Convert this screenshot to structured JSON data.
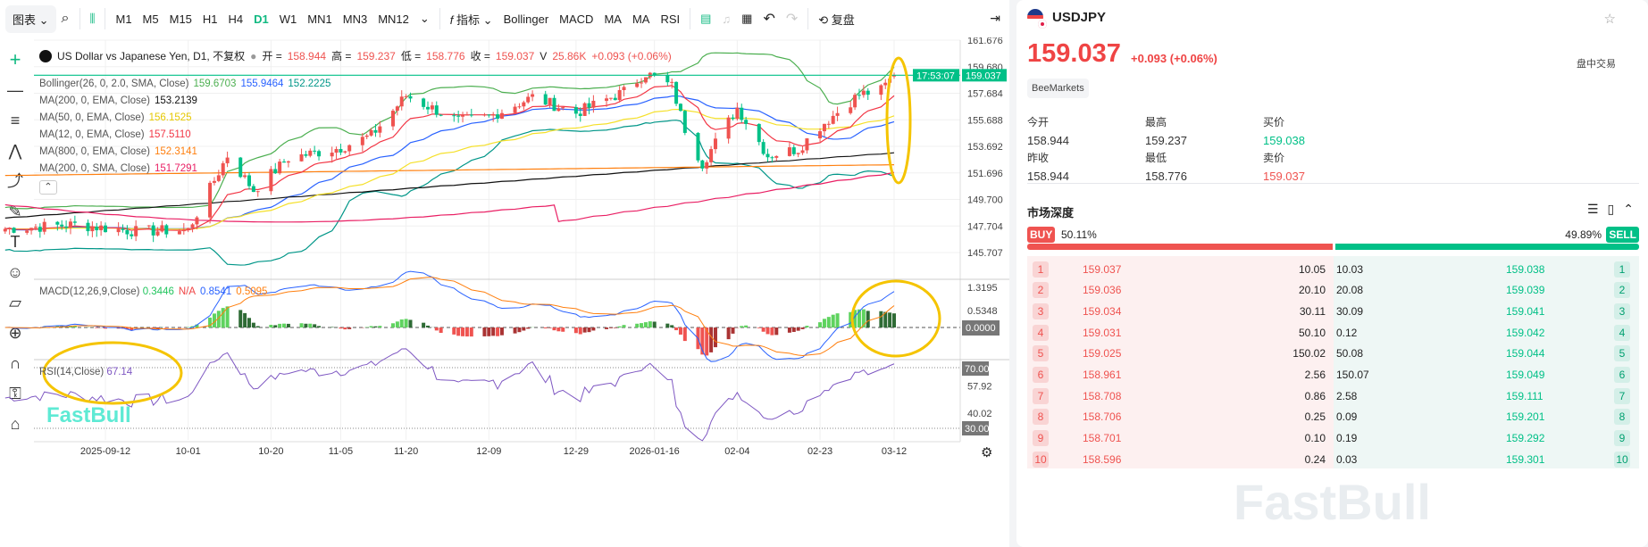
{
  "toolbar": {
    "chart_menu": "图表",
    "timeframes": [
      "M1",
      "M5",
      "M15",
      "H1",
      "H4",
      "D1",
      "W1",
      "MN1",
      "MN3",
      "MN12"
    ],
    "active_timeframe": "D1",
    "indicators_label": "指标",
    "indicators": [
      "Bollinger",
      "MACD",
      "MA",
      "MA",
      "RSI"
    ],
    "replay_label": "复盘"
  },
  "chart": {
    "title": "US Dollar vs Japanese Yen, D1, 不复权",
    "ohlc": {
      "open_label": "开 =",
      "open": "158.944",
      "high_label": "高 =",
      "high": "159.237",
      "low_label": "低 =",
      "low": "158.776",
      "close_label": "收 =",
      "close": "159.037",
      "volume_label": "V",
      "volume": "25.86K",
      "change": "+0.093 (+0.06%)"
    },
    "indicators": [
      {
        "label": "Bollinger(26, 0, 2.0, SMA, Close)",
        "values": [
          "159.6703",
          "155.9464",
          "152.2225"
        ],
        "colors": [
          "#4caf50",
          "#2962ff",
          "#009688"
        ]
      },
      {
        "label": "MA(200, 0, EMA, Close)",
        "values": [
          "153.2139"
        ],
        "colors": [
          "#111111"
        ]
      },
      {
        "label": "MA(50, 0, EMA, Close)",
        "values": [
          "156.1525"
        ],
        "colors": [
          "#f5e02a"
        ]
      },
      {
        "label": "MA(12, 0, EMA, Close)",
        "values": [
          "157.5110"
        ],
        "colors": [
          "#f23645"
        ]
      },
      {
        "label": "MA(800, 0, EMA, Close)",
        "values": [
          "152.3141"
        ],
        "colors": [
          "#ff7f0e"
        ]
      },
      {
        "label": "MA(200, 0, SMA, Close)",
        "values": [
          "151.7291"
        ],
        "colors": [
          "#e91e63"
        ]
      }
    ],
    "price_ticks": [
      "161.676",
      "159.680",
      "157.684",
      "155.688",
      "153.692",
      "151.696",
      "149.700",
      "147.704",
      "145.707"
    ],
    "last_price": "159.037",
    "countdown": "17:53:07",
    "macd": {
      "label": "MACD(12,26,9,Close)",
      "values": [
        "0.3446",
        "N/A",
        "0.8541",
        "0.5095"
      ],
      "colors": [
        "#22c55e",
        "#ef4444",
        "#2962ff",
        "#ff7f0e"
      ],
      "ticks": [
        "1.3195",
        "0.5348",
        "0.0000"
      ]
    },
    "rsi": {
      "label": "RSI(14,Close)",
      "value": "67.14",
      "ticks": [
        "70.00",
        "57.92",
        "40.02",
        "30.00"
      ]
    },
    "date_ticks": [
      "2025-09-12",
      "10-01",
      "10-20",
      "11-05",
      "11-20",
      "12-09",
      "12-29",
      "2026-01-16",
      "02-04",
      "02-23",
      "03-12"
    ],
    "watermark": "FastBull"
  },
  "chart_data": {
    "type": "candlestick",
    "x_unit": "date",
    "closes_keypoints": [
      [
        "2025-08-20",
        147.5
      ],
      [
        "2025-09-05",
        147.8
      ],
      [
        "2025-09-19",
        147.3
      ],
      [
        "2025-10-01",
        147.4
      ],
      [
        "2025-10-10",
        153.0
      ],
      [
        "2025-10-16",
        150.4
      ],
      [
        "2025-10-24",
        152.8
      ],
      [
        "2025-11-05",
        153.6
      ],
      [
        "2025-11-12",
        154.5
      ],
      [
        "2025-11-20",
        157.5
      ],
      [
        "2025-12-02",
        155.6
      ],
      [
        "2025-12-09",
        155.9
      ],
      [
        "2025-12-19",
        157.4
      ],
      [
        "2025-12-29",
        156.2
      ],
      [
        "2026-01-09",
        157.8
      ],
      [
        "2026-01-14",
        159.2
      ],
      [
        "2026-01-20",
        158.2
      ],
      [
        "2026-01-23",
        155.0
      ],
      [
        "2026-01-27",
        152.4
      ],
      [
        "2026-02-04",
        156.6
      ],
      [
        "2026-02-11",
        153.0
      ],
      [
        "2026-02-18",
        153.5
      ],
      [
        "2026-02-23",
        155.2
      ],
      [
        "2026-03-04",
        157.6
      ],
      [
        "2026-03-09",
        157.9
      ],
      [
        "2026-03-12",
        159.037
      ]
    ]
  },
  "panel": {
    "symbol": "USDJPY",
    "price": "159.037",
    "change": "+0.093",
    "change_pct": "(+0.06%)",
    "session": "盘中交易",
    "broker": "BeeMarkets",
    "stats": [
      {
        "label": "今开",
        "value": "158.944"
      },
      {
        "label": "最高",
        "value": "159.237"
      },
      {
        "label": "买价",
        "value": "159.038"
      },
      {
        "label": "昨收",
        "value": "158.944"
      },
      {
        "label": "最低",
        "value": "158.776"
      },
      {
        "label": "卖价",
        "value": "159.037"
      }
    ],
    "depth_title": "市场深度",
    "buy_label": "BUY",
    "buy_pct": "50.11%",
    "sell_pct": "49.89%",
    "sell_label": "SELL",
    "buy_fraction": 0.5011,
    "orderbook": [
      {
        "n": "1",
        "bid": "159.037",
        "bid_vol": "10.05",
        "ask_vol": "10.03",
        "ask": "159.038"
      },
      {
        "n": "2",
        "bid": "159.036",
        "bid_vol": "20.10",
        "ask_vol": "20.08",
        "ask": "159.039"
      },
      {
        "n": "3",
        "bid": "159.034",
        "bid_vol": "30.11",
        "ask_vol": "30.09",
        "ask": "159.041"
      },
      {
        "n": "4",
        "bid": "159.031",
        "bid_vol": "50.10",
        "ask_vol": "0.12",
        "ask": "159.042"
      },
      {
        "n": "5",
        "bid": "159.025",
        "bid_vol": "150.02",
        "ask_vol": "50.08",
        "ask": "159.044"
      },
      {
        "n": "6",
        "bid": "158.961",
        "bid_vol": "2.56",
        "ask_vol": "150.07",
        "ask": "159.049"
      },
      {
        "n": "7",
        "bid": "158.708",
        "bid_vol": "0.86",
        "ask_vol": "2.58",
        "ask": "159.111"
      },
      {
        "n": "8",
        "bid": "158.706",
        "bid_vol": "0.25",
        "ask_vol": "0.09",
        "ask": "159.201"
      },
      {
        "n": "9",
        "bid": "158.701",
        "bid_vol": "0.10",
        "ask_vol": "0.19",
        "ask": "159.292"
      },
      {
        "n": "10",
        "bid": "158.596",
        "bid_vol": "0.24",
        "ask_vol": "0.03",
        "ask": "159.301"
      }
    ]
  },
  "colors": {
    "up": "#ef5350",
    "down": "#00c087",
    "accent": "#10b981",
    "highlight": "#f5c400"
  }
}
